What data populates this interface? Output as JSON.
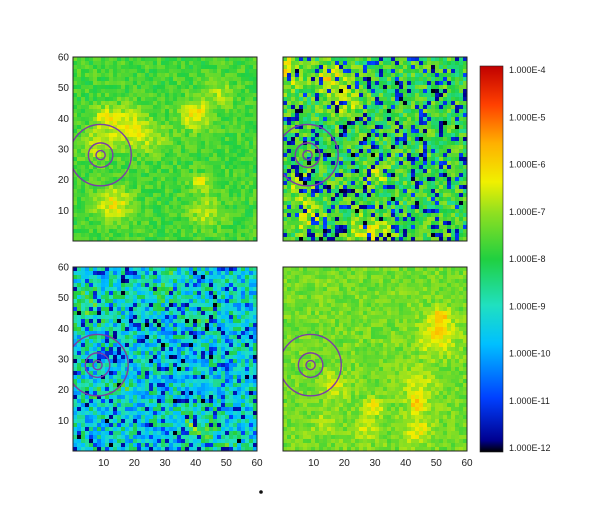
{
  "chart_data": {
    "type": "heatmap",
    "colormap": "jet",
    "colors": {
      "ring": "#7a3ca8",
      "frame": "#222222",
      "low": "#000000",
      "high": "#d00000"
    },
    "panels": [
      {
        "name": "top-left",
        "xlim": [
          0,
          60
        ],
        "ylim": [
          0,
          60
        ],
        "y_ticks": [
          "10",
          "20",
          "30",
          "40",
          "50",
          "60"
        ],
        "x_ticks": [],
        "field": {
          "log10_median": -7.7,
          "log10_spread": 0.45,
          "void_fraction": 0.0
        },
        "rings": {
          "center": [
            9,
            28
          ],
          "radii": [
            1.5,
            4,
            10
          ]
        }
      },
      {
        "name": "top-right",
        "xlim": [
          0,
          60
        ],
        "ylim": [
          0,
          60
        ],
        "y_ticks": [],
        "x_ticks": [],
        "field": {
          "log10_median": -7.8,
          "log10_spread": 0.85,
          "void_fraction": 0.2
        },
        "rings": {
          "center": [
            8,
            28
          ],
          "radii": [
            1.5,
            4,
            10
          ]
        }
      },
      {
        "name": "bottom-left",
        "xlim": [
          0,
          60
        ],
        "ylim": [
          0,
          60
        ],
        "y_ticks": [
          "10",
          "20",
          "30",
          "40",
          "50",
          "60"
        ],
        "x_ticks": [
          "10",
          "20",
          "30",
          "40",
          "50",
          "60"
        ],
        "field": {
          "log10_median": -9.2,
          "log10_spread": 1.2,
          "void_fraction": 0.15
        },
        "rings": {
          "center": [
            8,
            28
          ],
          "radii": [
            1.5,
            4,
            10
          ]
        }
      },
      {
        "name": "bottom-right",
        "xlim": [
          0,
          60
        ],
        "ylim": [
          0,
          60
        ],
        "y_ticks": [],
        "x_ticks": [
          "10",
          "20",
          "30",
          "40",
          "50",
          "60"
        ],
        "field": {
          "log10_median": -7.3,
          "log10_spread": 0.4,
          "void_fraction": 0.0
        },
        "rings": {
          "center": [
            9,
            28
          ],
          "radii": [
            1.5,
            4,
            10
          ]
        }
      }
    ],
    "colorbar": {
      "scale": "log",
      "range": [
        1e-12,
        0.0001
      ],
      "labels": [
        "1.000E-4",
        "1.000E-5",
        "1.000E-6",
        "1.000E-7",
        "1.000E-8",
        "1.000E-9",
        "1.000E-10",
        "1.000E-11",
        "1.000E-12"
      ]
    },
    "grid": false,
    "legend": "colorbar-right"
  }
}
